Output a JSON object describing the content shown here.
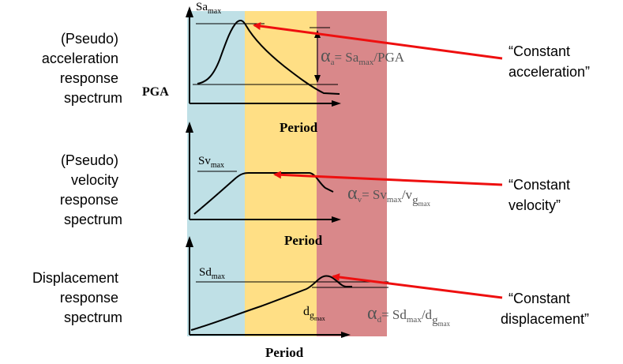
{
  "colors": {
    "band_short": "#bfe0e6",
    "band_mid": "#ffdf85",
    "band_long": "#d9888a",
    "arrow": "#ee0f0f",
    "curve": "#000000"
  },
  "left_labels": {
    "acceleration": [
      "(Pseudo)",
      "acceleration",
      "response",
      "spectrum"
    ],
    "velocity": [
      "(Pseudo)",
      "velocity",
      "response",
      "spectrum"
    ],
    "displacement": [
      "Displacement",
      "response",
      "spectrum"
    ]
  },
  "right_labels": {
    "acceleration": [
      "“Constant",
      "acceleration”"
    ],
    "velocity": [
      "“Constant",
      "velocity”"
    ],
    "displacement": [
      "“Constant",
      "displacement”"
    ]
  },
  "acc_panel": {
    "peak_base": "Sa",
    "peak_sub": "max",
    "pga_label": "PGA",
    "ratio_greek": "α",
    "ratio_greek_sub": "a",
    "ratio_eq": "= Sa",
    "ratio_eq_sub": "max",
    "ratio_tail": "/PGA",
    "axis_label": "Period"
  },
  "vel_panel": {
    "peak_base": "Sv",
    "peak_sub": "max",
    "ratio_greek": "α",
    "ratio_greek_sub": "v",
    "ratio_eq": "= Sv",
    "ratio_eq_sub": "max",
    "ratio_mid": "/v",
    "ratio_g": "g",
    "ratio_g_sub": "max",
    "axis_label": "Period"
  },
  "disp_panel": {
    "peak_base": "Sd",
    "peak_sub": "max",
    "ground_base": "d",
    "ground_g": "g",
    "ground_sub": "max",
    "ratio_greek": "α",
    "ratio_greek_sub": "d",
    "ratio_eq": "= Sd",
    "ratio_eq_sub": "max",
    "ratio_mid": "/d",
    "ratio_g": "g",
    "ratio_g_sub": "max",
    "axis_label": "Period"
  }
}
